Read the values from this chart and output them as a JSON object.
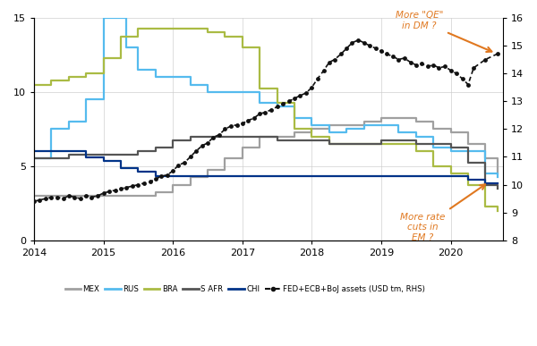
{
  "background_color": "#ffffff",
  "grid_color": "#cccccc",
  "ylim_left": [
    0,
    15
  ],
  "ylim_right": [
    8,
    16
  ],
  "yticks_left": [
    0,
    5,
    10,
    15
  ],
  "yticks_right": [
    8,
    9,
    10,
    11,
    12,
    13,
    14,
    15,
    16
  ],
  "xlim": [
    2014.0,
    2020.75
  ],
  "xticks": [
    2014,
    2015,
    2016,
    2017,
    2018,
    2019,
    2020
  ],
  "MEX": {
    "color": "#a0a0a0",
    "lw": 1.6,
    "dates": [
      2014.0,
      2014.25,
      2014.5,
      2014.75,
      2015.0,
      2015.25,
      2015.5,
      2015.75,
      2016.0,
      2016.25,
      2016.5,
      2016.75,
      2017.0,
      2017.25,
      2017.5,
      2017.75,
      2018.0,
      2018.25,
      2018.5,
      2018.75,
      2019.0,
      2019.25,
      2019.5,
      2019.75,
      2020.0,
      2020.25,
      2020.5,
      2020.67
    ],
    "values": [
      3.0,
      3.0,
      3.0,
      3.0,
      3.0,
      3.0,
      3.0,
      3.25,
      3.75,
      4.25,
      4.75,
      5.5,
      6.25,
      7.0,
      7.0,
      7.25,
      7.5,
      7.75,
      7.75,
      8.0,
      8.25,
      8.25,
      8.0,
      7.5,
      7.25,
      6.5,
      5.5,
      4.5
    ]
  },
  "RUS": {
    "color": "#55bbee",
    "lw": 1.6,
    "dates": [
      2014.0,
      2014.25,
      2014.5,
      2014.75,
      2015.0,
      2015.17,
      2015.33,
      2015.5,
      2015.75,
      2016.0,
      2016.25,
      2016.5,
      2016.75,
      2017.0,
      2017.25,
      2017.5,
      2017.75,
      2018.0,
      2018.25,
      2018.5,
      2018.75,
      2019.0,
      2019.25,
      2019.5,
      2019.75,
      2020.0,
      2020.25,
      2020.5,
      2020.67
    ],
    "values": [
      5.5,
      7.5,
      8.0,
      9.5,
      15.0,
      15.0,
      13.0,
      11.5,
      11.0,
      11.0,
      10.5,
      10.0,
      10.0,
      10.0,
      9.25,
      9.0,
      8.25,
      7.75,
      7.25,
      7.5,
      7.75,
      7.75,
      7.25,
      7.0,
      6.25,
      6.0,
      6.0,
      4.5,
      4.25
    ]
  },
  "BRA": {
    "color": "#aabb44",
    "lw": 1.6,
    "dates": [
      2014.0,
      2014.25,
      2014.5,
      2014.75,
      2015.0,
      2015.25,
      2015.5,
      2015.75,
      2016.0,
      2016.25,
      2016.5,
      2016.75,
      2017.0,
      2017.25,
      2017.5,
      2017.75,
      2018.0,
      2018.25,
      2018.5,
      2018.75,
      2019.0,
      2019.25,
      2019.5,
      2019.75,
      2020.0,
      2020.25,
      2020.5,
      2020.67
    ],
    "values": [
      10.5,
      10.75,
      11.0,
      11.25,
      12.25,
      13.75,
      14.25,
      14.25,
      14.25,
      14.25,
      14.0,
      13.75,
      13.0,
      10.25,
      9.25,
      7.5,
      7.0,
      6.5,
      6.5,
      6.5,
      6.5,
      6.5,
      6.0,
      5.0,
      4.5,
      3.75,
      2.25,
      2.0
    ]
  },
  "SAFR": {
    "color": "#555555",
    "lw": 1.6,
    "dates": [
      2014.0,
      2014.25,
      2014.5,
      2014.75,
      2015.0,
      2015.25,
      2015.5,
      2015.75,
      2016.0,
      2016.25,
      2016.5,
      2016.75,
      2017.0,
      2017.25,
      2017.5,
      2017.75,
      2018.0,
      2018.25,
      2018.5,
      2018.75,
      2019.0,
      2019.25,
      2019.5,
      2019.75,
      2020.0,
      2020.25,
      2020.5,
      2020.67
    ],
    "values": [
      5.5,
      5.5,
      5.75,
      5.75,
      5.75,
      5.75,
      6.0,
      6.25,
      6.75,
      7.0,
      7.0,
      7.0,
      7.0,
      7.0,
      6.75,
      6.75,
      6.75,
      6.5,
      6.5,
      6.5,
      6.75,
      6.75,
      6.5,
      6.5,
      6.25,
      5.25,
      3.75,
      3.5
    ]
  },
  "CHI": {
    "color": "#003388",
    "lw": 1.6,
    "dates": [
      2014.0,
      2014.25,
      2014.5,
      2014.75,
      2015.0,
      2015.25,
      2015.5,
      2015.75,
      2016.0,
      2016.25,
      2016.5,
      2016.75,
      2017.0,
      2017.25,
      2017.5,
      2017.75,
      2018.0,
      2018.25,
      2018.5,
      2018.75,
      2019.0,
      2019.25,
      2019.5,
      2019.75,
      2020.0,
      2020.25,
      2020.5,
      2020.67
    ],
    "values": [
      6.0,
      6.0,
      6.0,
      5.6,
      5.35,
      4.85,
      4.6,
      4.35,
      4.35,
      4.35,
      4.35,
      4.35,
      4.35,
      4.35,
      4.35,
      4.35,
      4.35,
      4.35,
      4.35,
      4.35,
      4.35,
      4.35,
      4.35,
      4.35,
      4.35,
      4.1,
      3.85,
      3.85
    ]
  },
  "FED": {
    "color": "#111111",
    "lw": 1.5,
    "dates": [
      2014.0,
      2014.08,
      2014.17,
      2014.25,
      2014.33,
      2014.42,
      2014.5,
      2014.58,
      2014.67,
      2014.75,
      2014.83,
      2014.92,
      2015.0,
      2015.08,
      2015.17,
      2015.25,
      2015.33,
      2015.42,
      2015.5,
      2015.58,
      2015.67,
      2015.75,
      2015.83,
      2015.92,
      2016.0,
      2016.08,
      2016.17,
      2016.25,
      2016.33,
      2016.42,
      2016.5,
      2016.58,
      2016.67,
      2016.75,
      2016.83,
      2016.92,
      2017.0,
      2017.08,
      2017.17,
      2017.25,
      2017.33,
      2017.42,
      2017.5,
      2017.58,
      2017.67,
      2017.75,
      2017.83,
      2017.92,
      2018.0,
      2018.08,
      2018.17,
      2018.25,
      2018.33,
      2018.42,
      2018.5,
      2018.58,
      2018.67,
      2018.75,
      2018.83,
      2018.92,
      2019.0,
      2019.08,
      2019.17,
      2019.25,
      2019.33,
      2019.42,
      2019.5,
      2019.58,
      2019.67,
      2019.75,
      2019.83,
      2019.92,
      2020.0,
      2020.08,
      2020.17,
      2020.25,
      2020.33,
      2020.5,
      2020.67
    ],
    "values": [
      9.4,
      9.45,
      9.5,
      9.55,
      9.55,
      9.5,
      9.6,
      9.55,
      9.5,
      9.6,
      9.55,
      9.6,
      9.7,
      9.75,
      9.8,
      9.85,
      9.9,
      9.95,
      10.0,
      10.05,
      10.1,
      10.2,
      10.3,
      10.35,
      10.5,
      10.7,
      10.8,
      11.0,
      11.2,
      11.4,
      11.5,
      11.7,
      11.8,
      12.0,
      12.1,
      12.15,
      12.2,
      12.3,
      12.4,
      12.55,
      12.6,
      12.7,
      12.8,
      12.9,
      13.0,
      13.1,
      13.2,
      13.3,
      13.5,
      13.8,
      14.1,
      14.4,
      14.5,
      14.7,
      14.9,
      15.1,
      15.2,
      15.1,
      15.0,
      14.9,
      14.8,
      14.7,
      14.6,
      14.5,
      14.55,
      14.4,
      14.3,
      14.35,
      14.25,
      14.3,
      14.2,
      14.25,
      14.1,
      14.0,
      13.8,
      13.6,
      14.2,
      14.5,
      14.7
    ]
  },
  "legend_items": [
    {
      "label": "MEX",
      "color": "#a0a0a0",
      "style": "solid"
    },
    {
      "label": "RUS",
      "color": "#55bbee",
      "style": "solid"
    },
    {
      "label": "BRA",
      "color": "#aabb44",
      "style": "solid"
    },
    {
      "label": "S AFR",
      "color": "#555555",
      "style": "solid"
    },
    {
      "label": "CHI",
      "color": "#003388",
      "style": "solid"
    },
    {
      "label": "FED+ECB+BoJ assets (USD tm, RHS)",
      "color": "#111111",
      "style": "dashed"
    }
  ]
}
